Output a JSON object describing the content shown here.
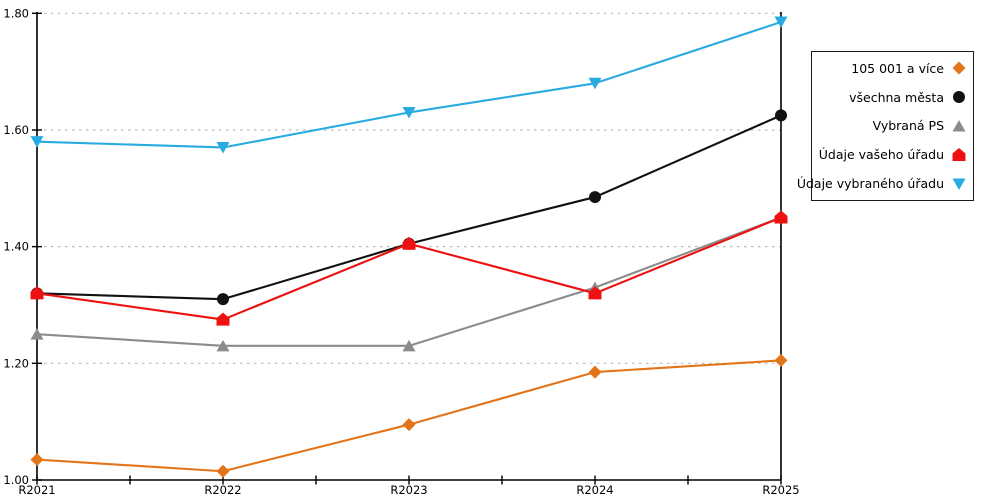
{
  "chart_data": {
    "type": "line",
    "title": "",
    "xlabel": "",
    "ylabel": "",
    "x_categories": [
      "R2021",
      "R2022",
      "R2023",
      "R2024",
      "R2025"
    ],
    "y_tick_labels": [
      "1.00",
      "1.20",
      "1.40",
      "1.60",
      "1.80"
    ],
    "y_tick_values": [
      1.0,
      1.2,
      1.4,
      1.6,
      1.8
    ],
    "ylim": [
      1.0,
      1.8
    ],
    "grid": "horizontal-dashed",
    "legend_position": "top-right-outside",
    "series": [
      {
        "name": "105 001 a více",
        "marker": "diamond",
        "color": "#E2751A",
        "values": [
          1.035,
          1.015,
          1.095,
          1.185,
          1.205
        ]
      },
      {
        "name": "všechna města",
        "marker": "circle",
        "color": "#111111",
        "values": [
          1.32,
          1.31,
          1.405,
          1.485,
          1.625
        ]
      },
      {
        "name": "Vybraná PS",
        "marker": "triangle-up",
        "color": "#8C8C8C",
        "values": [
          1.25,
          1.23,
          1.23,
          1.33,
          1.45
        ]
      },
      {
        "name": "Údaje vašeho úřadu",
        "marker": "pentagon",
        "color": "#EE1111",
        "values": [
          1.32,
          1.275,
          1.405,
          1.32,
          1.45
        ]
      },
      {
        "name": "Údaje vybraného úřadu",
        "marker": "triangle-down",
        "color": "#29ABE2",
        "values": [
          1.58,
          1.57,
          1.63,
          1.68,
          1.785
        ]
      }
    ],
    "axis_color": "#000000",
    "gridline_color": "#BBBBBB"
  }
}
